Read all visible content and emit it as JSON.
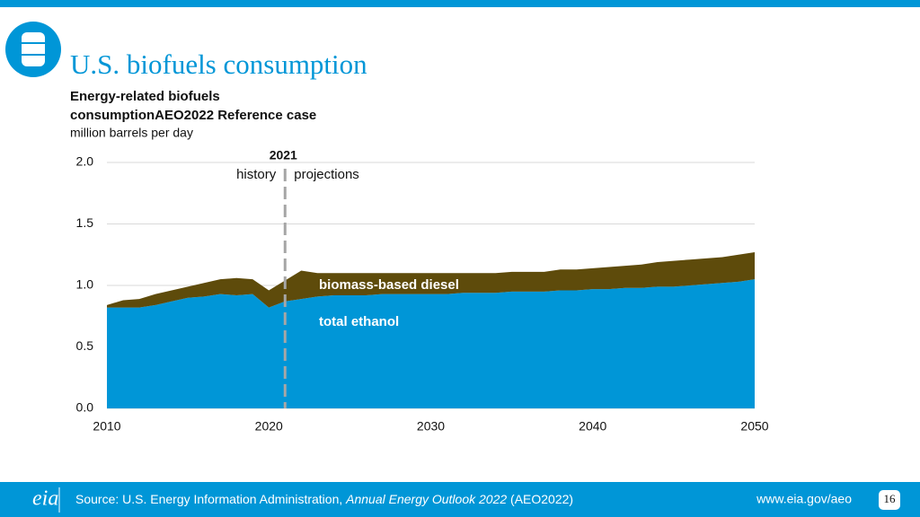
{
  "slide": {
    "title": "U.S. biofuels consumption",
    "source_prefix": "Source: U.S. Energy Information Administration, ",
    "source_italic": "Annual Energy Outlook 2022",
    "source_suffix": " (AEO2022)",
    "logo": "eia",
    "url": "www.eia.gov/aeo",
    "page": 16
  },
  "chart_data": {
    "type": "stacked_area",
    "title_lines": [
      "Energy-related biofuels",
      "consumptionAEO2022 Reference case"
    ],
    "unit": "million barrels per day",
    "x": [
      2010,
      2011,
      2012,
      2013,
      2014,
      2015,
      2016,
      2017,
      2018,
      2019,
      2020,
      2021,
      2022,
      2023,
      2024,
      2025,
      2026,
      2027,
      2028,
      2029,
      2030,
      2031,
      2032,
      2033,
      2034,
      2035,
      2036,
      2037,
      2038,
      2039,
      2040,
      2041,
      2042,
      2043,
      2044,
      2045,
      2046,
      2047,
      2048,
      2049,
      2050
    ],
    "series": [
      {
        "name": "total ethanol",
        "color": "#0096d7",
        "values": [
          0.82,
          0.82,
          0.82,
          0.84,
          0.87,
          0.9,
          0.91,
          0.93,
          0.92,
          0.93,
          0.82,
          0.87,
          0.89,
          0.91,
          0.92,
          0.92,
          0.92,
          0.93,
          0.93,
          0.93,
          0.93,
          0.93,
          0.94,
          0.94,
          0.94,
          0.95,
          0.95,
          0.95,
          0.96,
          0.96,
          0.97,
          0.97,
          0.98,
          0.98,
          0.99,
          0.99,
          1.0,
          1.01,
          1.02,
          1.03,
          1.05
        ]
      },
      {
        "name": "biomass-based diesel",
        "color": "#5e4b0b",
        "values": [
          0.02,
          0.06,
          0.07,
          0.09,
          0.09,
          0.09,
          0.11,
          0.12,
          0.14,
          0.12,
          0.14,
          0.17,
          0.23,
          0.19,
          0.18,
          0.18,
          0.18,
          0.17,
          0.17,
          0.17,
          0.17,
          0.17,
          0.16,
          0.16,
          0.16,
          0.16,
          0.16,
          0.16,
          0.17,
          0.17,
          0.17,
          0.18,
          0.18,
          0.19,
          0.2,
          0.21,
          0.21,
          0.21,
          0.21,
          0.22,
          0.22
        ]
      }
    ],
    "xlim": [
      2010,
      2050
    ],
    "xticks": [
      2010,
      2020,
      2030,
      2040,
      2050
    ],
    "ylim": [
      0,
      2
    ],
    "yticks": [
      {
        "value": 0,
        "label": "0.0"
      },
      {
        "value": 0.5,
        "label": "0.5"
      },
      {
        "value": 1,
        "label": "1.0"
      },
      {
        "value": 1.5,
        "label": "1.5"
      },
      {
        "value": 2,
        "label": "2.0"
      }
    ],
    "grid": true,
    "divider": {
      "x": 2021,
      "left_label": "history",
      "right_label": "projections"
    }
  }
}
